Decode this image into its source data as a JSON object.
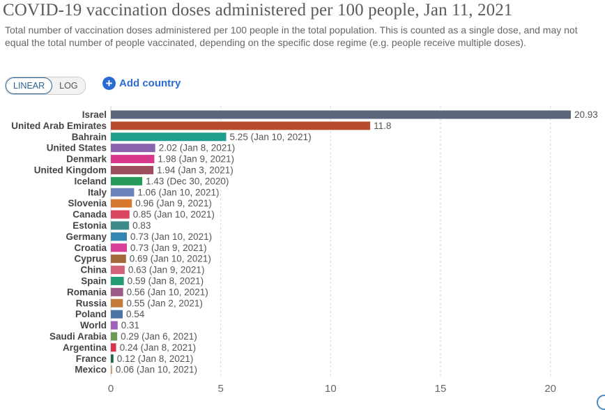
{
  "title": "COVID-19 vaccination doses administered per 100 people, Jan 11, 2021",
  "subtitle": "Total number of vaccination doses administered per 100 people in the total population. This is counted as a single dose, and may not equal the total number of people vaccinated, depending on the specific dose regime (e.g. people receive multiple doses).",
  "controls": {
    "linear_label": "LINEAR",
    "log_label": "LOG",
    "add_country_label": "Add country",
    "plus_symbol": "+"
  },
  "chart_data": {
    "type": "bar",
    "orientation": "horizontal",
    "title": "COVID-19 vaccination doses administered per 100 people, Jan 11, 2021",
    "xlim": [
      0,
      21.5
    ],
    "xticks": [
      0,
      5,
      10,
      15,
      20
    ],
    "grid": true,
    "rows": [
      {
        "country": "Israel",
        "value": 20.93,
        "label": "20.93",
        "color": "#58657a"
      },
      {
        "country": "United Arab Emirates",
        "value": 11.8,
        "label": "11.8",
        "color": "#b84b2c"
      },
      {
        "country": "Bahrain",
        "value": 5.25,
        "label": "5.25 (Jan 10, 2021)",
        "color": "#1f9e8e"
      },
      {
        "country": "United States",
        "value": 2.02,
        "label": "2.02 (Jan 8, 2021)",
        "color": "#8a62ad"
      },
      {
        "country": "Denmark",
        "value": 1.98,
        "label": "1.98 (Jan 9, 2021)",
        "color": "#d8388c"
      },
      {
        "country": "United Kingdom",
        "value": 1.94,
        "label": "1.94 (Jan 3, 2021)",
        "color": "#9e4d5e"
      },
      {
        "country": "Iceland",
        "value": 1.43,
        "label": "1.43 (Dec 30, 2020)",
        "color": "#27995a"
      },
      {
        "country": "Italy",
        "value": 1.06,
        "label": "1.06 (Jan 10, 2021)",
        "color": "#6a82bd"
      },
      {
        "country": "Slovenia",
        "value": 0.96,
        "label": "0.96 (Jan 9, 2021)",
        "color": "#d6792e"
      },
      {
        "country": "Canada",
        "value": 0.85,
        "label": "0.85 (Jan 10, 2021)",
        "color": "#d9455f"
      },
      {
        "country": "Estonia",
        "value": 0.83,
        "label": "0.83",
        "color": "#3d8a8a"
      },
      {
        "country": "Germany",
        "value": 0.73,
        "label": "0.73 (Jan 10, 2021)",
        "color": "#3585b3"
      },
      {
        "country": "Croatia",
        "value": 0.73,
        "label": "0.73 (Jan 9, 2021)",
        "color": "#d83f99"
      },
      {
        "country": "Cyprus",
        "value": 0.69,
        "label": "0.69 (Jan 10, 2021)",
        "color": "#a4663b"
      },
      {
        "country": "China",
        "value": 0.63,
        "label": "0.63 (Jan 9, 2021)",
        "color": "#d3617a"
      },
      {
        "country": "Spain",
        "value": 0.59,
        "label": "0.59 (Jan 8, 2021)",
        "color": "#229c75"
      },
      {
        "country": "Romania",
        "value": 0.56,
        "label": "0.56 (Jan 10, 2021)",
        "color": "#9b5a87"
      },
      {
        "country": "Russia",
        "value": 0.55,
        "label": "0.55 (Jan 2, 2021)",
        "color": "#c47a3a"
      },
      {
        "country": "Poland",
        "value": 0.54,
        "label": "0.54",
        "color": "#4e76a4"
      },
      {
        "country": "World",
        "value": 0.31,
        "label": "0.31",
        "color": "#a05fb8"
      },
      {
        "country": "Saudi Arabia",
        "value": 0.29,
        "label": "0.29 (Jan 6, 2021)",
        "color": "#6a9a56"
      },
      {
        "country": "Argentina",
        "value": 0.24,
        "label": "0.24 (Jan 8, 2021)",
        "color": "#d6344c"
      },
      {
        "country": "France",
        "value": 0.12,
        "label": "0.12 (Jan 8, 2021)",
        "color": "#1b6b45"
      },
      {
        "country": "Mexico",
        "value": 0.06,
        "label": "0.06 (Jan 10, 2021)",
        "color": "#c99a6a"
      }
    ]
  }
}
